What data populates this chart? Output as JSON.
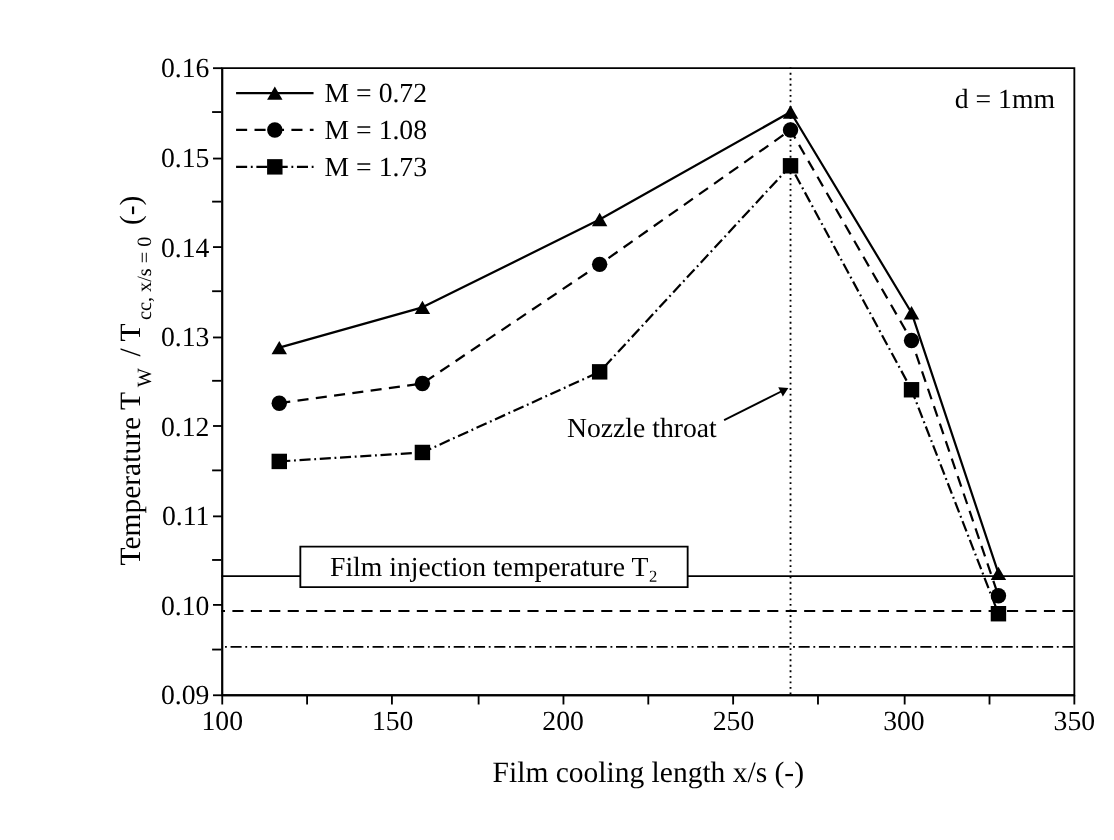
{
  "chart_data": {
    "type": "line",
    "xlabel": "Film cooling length x/s (-)",
    "ylabel": "Temperature T$_{W}$ / T$_{cc, x/s = 0}$ (-)",
    "x": [
      117,
      159,
      211,
      267,
      302.5,
      328
    ],
    "series": [
      {
        "name": "M = 0.72",
        "color": "#000000",
        "marker": "triangle",
        "line_style": "solid",
        "values": [
          0.1287,
          0.1332,
          0.143,
          0.155,
          0.1326,
          0.1035
        ]
      },
      {
        "name": "M = 1.08",
        "color": "#000000",
        "marker": "circle",
        "line_style": "dashed",
        "values": [
          0.1225,
          0.1247,
          0.138,
          0.153,
          0.1295,
          0.101
        ]
      },
      {
        "name": "M = 1.73",
        "color": "#000000",
        "marker": "square",
        "line_style": "dashdot",
        "values": [
          0.116,
          0.117,
          0.126,
          0.149,
          0.124,
          0.099
        ]
      }
    ],
    "xlim": [
      100,
      350
    ],
    "xticks": [
      100,
      {
        "value": 125,
        "label": null
      },
      150,
      {
        "value": 175,
        "label": null
      },
      200,
      {
        "value": 225,
        "label": null
      },
      250,
      {
        "value": 275,
        "label": null
      },
      300,
      {
        "value": 325,
        "label": null
      },
      350
    ],
    "ylim": [
      0.09,
      0.16
    ],
    "yticks": [
      0.09,
      {
        "value": 0.095,
        "label": null
      },
      {
        "value": 0.1,
        "label": "0.10"
      },
      {
        "value": 0.105,
        "label": null
      },
      0.11,
      {
        "value": 0.115,
        "label": null
      },
      0.12,
      {
        "value": 0.125,
        "label": null
      },
      0.13,
      {
        "value": 0.135,
        "label": null
      },
      0.14,
      {
        "value": 0.145,
        "label": null
      },
      0.15,
      {
        "value": 0.155,
        "label": null
      },
      0.16
    ],
    "ref_lines": [
      {
        "axis": "y",
        "value": 0.1032,
        "label": "Film injection temperature T₂",
        "color": "#000000",
        "line_style": "solid"
      },
      {
        "axis": "y",
        "value": 0.0993,
        "color": "#000000",
        "line_style": "dashed"
      },
      {
        "axis": "y",
        "value": 0.0953,
        "color": "#000000",
        "line_style": "dashdot"
      },
      {
        "axis": "x",
        "value": 267,
        "color": "#000000",
        "line_style": "dotted"
      }
    ],
    "annotations": [
      {
        "text": "Nozzle throat",
        "x": 267,
        "y": 0.1235
      },
      "d = 1mm"
    ],
    "legend": "top left",
    "grid": false
  }
}
